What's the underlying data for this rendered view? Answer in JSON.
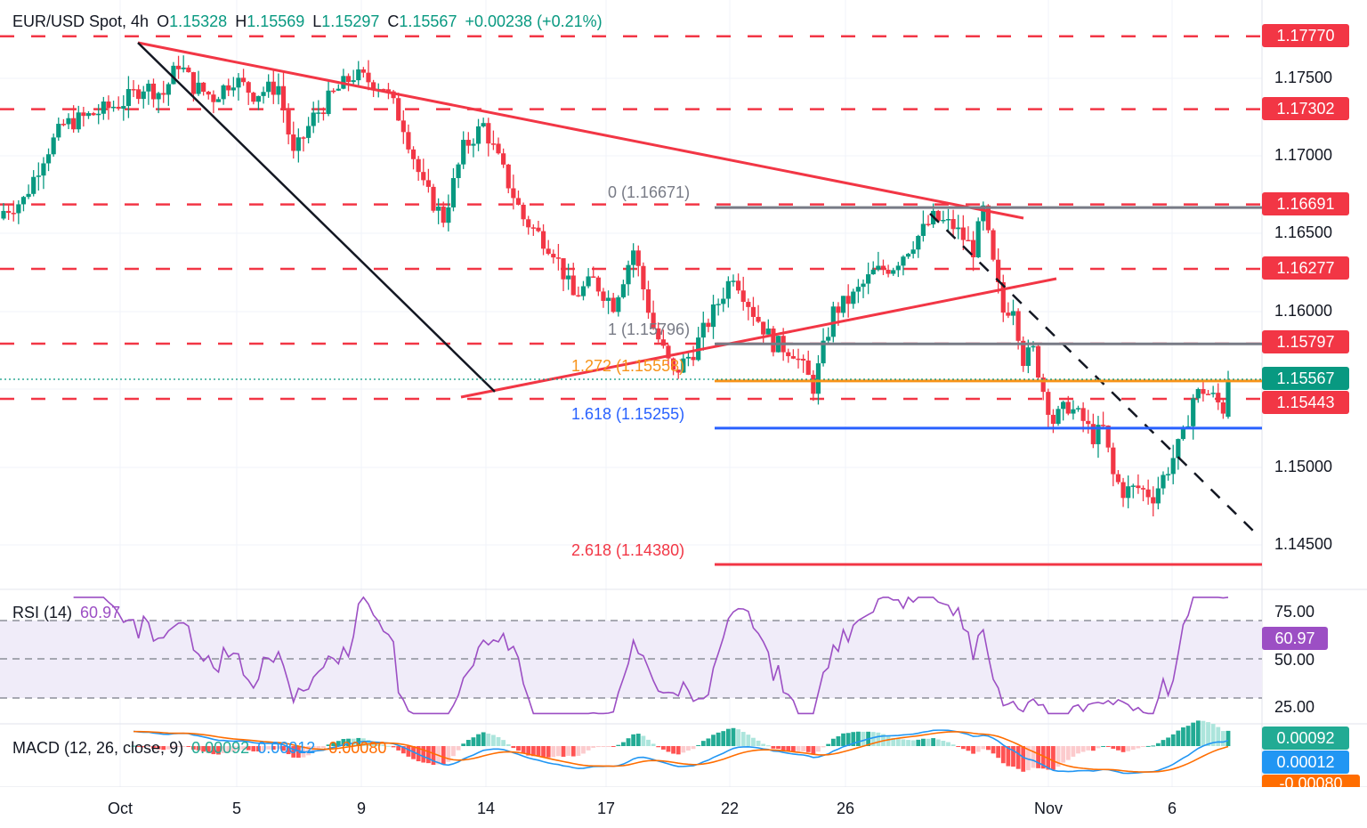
{
  "header": {
    "symbol": "EUR/USD Spot, 4h",
    "o_label": "O",
    "o": "1.15328",
    "h_label": "H",
    "h": "1.15569",
    "l_label": "L",
    "l": "1.15297",
    "c_label": "C",
    "c": "1.15567",
    "change": "+0.00238 (+0.21%)"
  },
  "colors": {
    "up": "#089981",
    "down": "#f23645",
    "resistance": "#f23645",
    "fib_gray": "#787b86",
    "fib_orange": "#f7931a",
    "fib_blue": "#2962ff",
    "rsi": "#9c4fc4",
    "rsi_bg": "#f0ecf9",
    "macd": "#2196f3",
    "signal": "#ff6d00",
    "hist_up_strong": "#22ab94",
    "hist_up_weak": "#ace5dc",
    "hist_down_strong": "#ff5252",
    "hist_down_weak": "#fccbcd"
  },
  "price_axis": {
    "ticks": [
      "1.17500",
      "1.17000",
      "1.16500",
      "1.16000",
      "1.15000",
      "1.14500"
    ]
  },
  "tags": [
    {
      "value": "1.17770",
      "color": "#f23645"
    },
    {
      "value": "1.17302",
      "color": "#f23645"
    },
    {
      "value": "1.16691",
      "color": "#f23645"
    },
    {
      "value": "1.16277",
      "color": "#f23645"
    },
    {
      "value": "1.15797",
      "color": "#f23645"
    },
    {
      "value": "1.15567",
      "color": "#089981"
    },
    {
      "value": "1.15443",
      "color": "#f23645"
    }
  ],
  "fib_labels": [
    {
      "text": "0 (1.16671)",
      "color": "#787b86"
    },
    {
      "text": "1 (1.15796)",
      "color": "#787b86"
    },
    {
      "text": "1.272 (1.15558)",
      "color": "#f7931a"
    },
    {
      "text": "1.618 (1.15255)",
      "color": "#2962ff"
    },
    {
      "text": "2.618 (1.14380)",
      "color": "#f23645"
    }
  ],
  "rsi": {
    "label": "RSI (14)",
    "value": "60.97",
    "ticks": [
      "75.00",
      "50.00",
      "25.00"
    ]
  },
  "macd": {
    "label": "MACD (12, 26, close, 9)",
    "hist": "0.00092",
    "macd": "0.00012",
    "signal": "-0.00080"
  },
  "dates": [
    "Oct",
    "5",
    "9",
    "14",
    "17",
    "22",
    "26",
    "Nov",
    "6"
  ],
  "chart_data": {
    "type": "candlestick",
    "title": "EUR/USD Spot, 4h",
    "ohlc_last": {
      "open": 1.15328,
      "high": 1.15569,
      "low": 1.15297,
      "close": 1.15567,
      "change": 0.00238,
      "change_pct": 0.21
    },
    "x_ticks": [
      "Oct",
      "5",
      "9",
      "14",
      "17",
      "22",
      "26",
      "Nov",
      "6"
    ],
    "y_range": [
      1.1425,
      1.179
    ],
    "horizontal_resistance_support_levels": [
      1.1777,
      1.17302,
      1.16691,
      1.16277,
      1.15797,
      1.15443
    ],
    "fibonacci_extension": [
      {
        "level": 0,
        "price": 1.16671
      },
      {
        "level": 1,
        "price": 1.15796
      },
      {
        "level": 1.272,
        "price": 1.15558
      },
      {
        "level": 1.618,
        "price": 1.15255
      },
      {
        "level": 2.618,
        "price": 1.1438
      }
    ],
    "close_path_keypoints": [
      [
        0,
        1.1665
      ],
      [
        4,
        1.1672
      ],
      [
        8,
        1.17
      ],
      [
        12,
        1.172
      ],
      [
        18,
        1.1727
      ],
      [
        24,
        1.1735
      ],
      [
        28,
        1.1745
      ],
      [
        32,
        1.174
      ],
      [
        35,
        1.176
      ],
      [
        38,
        1.1745
      ],
      [
        42,
        1.1738
      ],
      [
        46,
        1.175
      ],
      [
        50,
        1.174
      ],
      [
        55,
        1.1745
      ],
      [
        58,
        1.17
      ],
      [
        62,
        1.1725
      ],
      [
        66,
        1.174
      ],
      [
        70,
        1.1752
      ],
      [
        76,
        1.1745
      ],
      [
        80,
        1.172
      ],
      [
        84,
        1.168
      ],
      [
        88,
        1.166
      ],
      [
        92,
        1.1705
      ],
      [
        96,
        1.172
      ],
      [
        100,
        1.169
      ],
      [
        104,
        1.166
      ],
      [
        110,
        1.164
      ],
      [
        114,
        1.161
      ],
      [
        118,
        1.162
      ],
      [
        122,
        1.1605
      ],
      [
        126,
        1.164
      ],
      [
        130,
        1.159
      ],
      [
        134,
        1.156
      ],
      [
        138,
        1.1575
      ],
      [
        142,
        1.16
      ],
      [
        146,
        1.1625
      ],
      [
        150,
        1.16
      ],
      [
        154,
        1.158
      ],
      [
        158,
        1.1575
      ],
      [
        162,
        1.1552
      ],
      [
        166,
        1.16
      ],
      [
        170,
        1.161
      ],
      [
        174,
        1.1625
      ]
    ],
    "rsi_latest": 60.97,
    "macd_latest": {
      "histogram": 0.00092,
      "macd": 0.00012,
      "signal": -0.0008
    }
  }
}
